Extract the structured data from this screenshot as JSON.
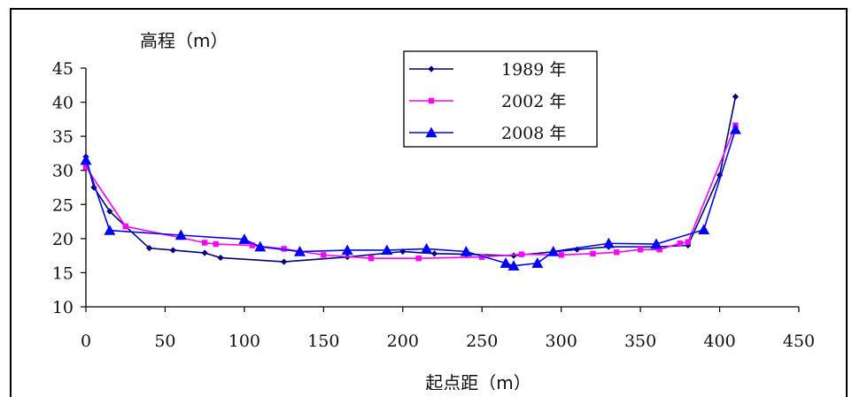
{
  "chart_data": {
    "type": "line",
    "title": "",
    "ylabel": "高程（m）",
    "xlabel": "起点距（m）",
    "xlim": [
      0,
      450
    ],
    "ylim": [
      10,
      45
    ],
    "xticks": [
      0,
      50,
      100,
      150,
      200,
      250,
      300,
      350,
      400,
      450
    ],
    "yticks": [
      10,
      15,
      20,
      25,
      30,
      35,
      40,
      45
    ],
    "grid": false,
    "legend_position": "top-center",
    "series": [
      {
        "name": "1989 年",
        "color": "#000080",
        "marker": "diamond",
        "points": [
          [
            0,
            32.0
          ],
          [
            5,
            27.5
          ],
          [
            15,
            24.0
          ],
          [
            25,
            21.8
          ],
          [
            40,
            18.6
          ],
          [
            55,
            18.3
          ],
          [
            75,
            17.9
          ],
          [
            85,
            17.2
          ],
          [
            125,
            16.6
          ],
          [
            165,
            17.3
          ],
          [
            200,
            18.1
          ],
          [
            220,
            17.8
          ],
          [
            240,
            17.7
          ],
          [
            270,
            17.5
          ],
          [
            310,
            18.4
          ],
          [
            330,
            18.8
          ],
          [
            360,
            18.8
          ],
          [
            380,
            19.0
          ],
          [
            400,
            29.3
          ],
          [
            410,
            40.8
          ]
        ]
      },
      {
        "name": "2002 年",
        "color": "#FF00FF",
        "marker": "square",
        "points": [
          [
            0,
            30.5
          ],
          [
            25,
            21.8
          ],
          [
            75,
            19.4
          ],
          [
            82,
            19.2
          ],
          [
            105,
            19.0
          ],
          [
            125,
            18.5
          ],
          [
            150,
            17.6
          ],
          [
            180,
            17.1
          ],
          [
            210,
            17.1
          ],
          [
            250,
            17.3
          ],
          [
            275,
            17.7
          ],
          [
            300,
            17.6
          ],
          [
            320,
            17.8
          ],
          [
            335,
            18.0
          ],
          [
            350,
            18.4
          ],
          [
            362,
            18.4
          ],
          [
            375,
            19.3
          ],
          [
            380,
            19.5
          ],
          [
            410,
            36.6
          ]
        ]
      },
      {
        "name": "2008 年",
        "color": "#0000FF",
        "marker": "triangle",
        "points": [
          [
            0,
            31.5
          ],
          [
            15,
            21.2
          ],
          [
            60,
            20.5
          ],
          [
            100,
            19.9
          ],
          [
            110,
            18.8
          ],
          [
            135,
            18.1
          ],
          [
            165,
            18.3
          ],
          [
            190,
            18.3
          ],
          [
            215,
            18.5
          ],
          [
            240,
            18.1
          ],
          [
            265,
            16.4
          ],
          [
            270,
            16.0
          ],
          [
            285,
            16.4
          ],
          [
            295,
            18.1
          ],
          [
            330,
            19.3
          ],
          [
            360,
            19.2
          ],
          [
            390,
            21.3
          ],
          [
            410,
            36.0
          ]
        ]
      }
    ]
  }
}
